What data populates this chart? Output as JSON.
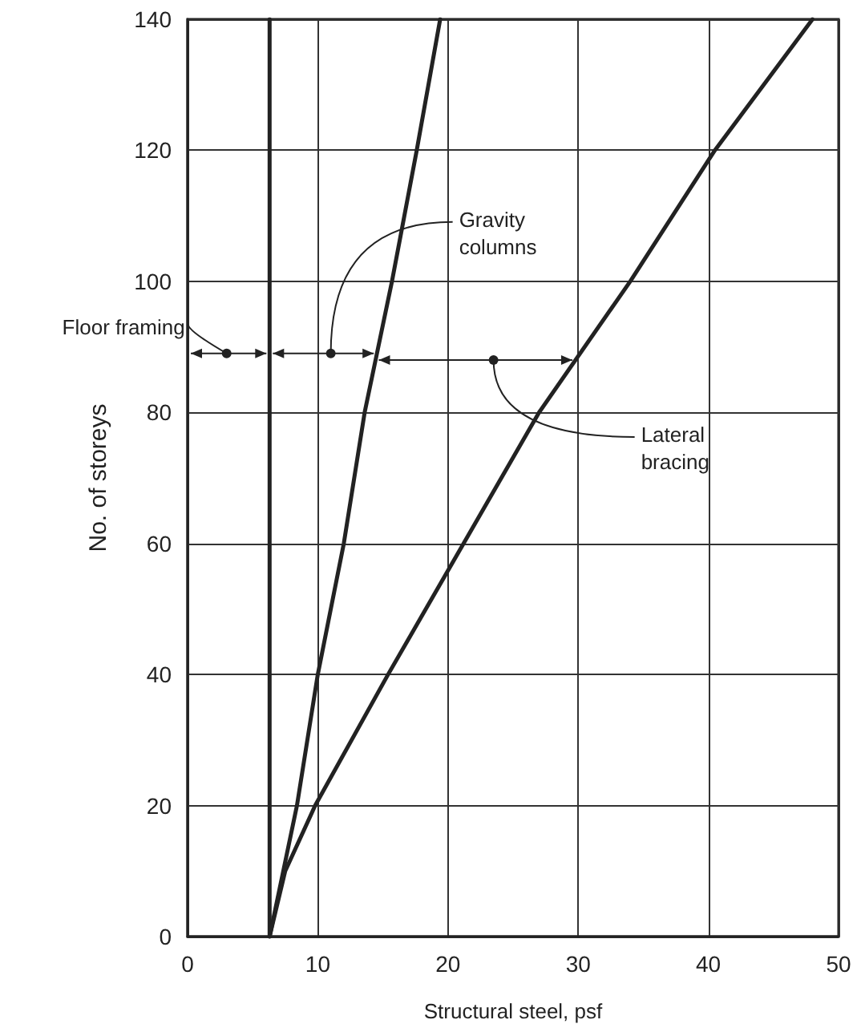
{
  "chart_data": {
    "type": "line",
    "xlabel": "Structural steel, psf",
    "ylabel": "No. of storeys",
    "series": [
      {
        "color": "#222222",
        "x": [
          6.3,
          6.3
        ],
        "values": [
          0,
          140
        ]
      },
      {
        "color": "#222222",
        "x": [
          6.3,
          8.4,
          10,
          12,
          13.6,
          15.7,
          17.6,
          19.4
        ],
        "values": [
          0,
          20,
          40,
          60,
          80,
          100,
          120,
          140
        ]
      },
      {
        "color": "#222222",
        "x": [
          6.3,
          7.5,
          9.8,
          15.4,
          21.2,
          27,
          34,
          40.5,
          48
        ],
        "values": [
          0,
          10,
          20,
          40,
          60,
          80,
          100,
          120,
          140
        ]
      }
    ],
    "annotations": [
      {
        "text": "Floor framing",
        "x": 3,
        "y": 89
      },
      {
        "text": "Gravity columns",
        "x": 11,
        "y": 89
      },
      {
        "text": "Lateral bracing",
        "x": 23.5,
        "y": 88
      }
    ],
    "xlim": [
      0,
      50
    ],
    "xticks": [
      0,
      10,
      20,
      30,
      40,
      50
    ],
    "ylim": [
      0,
      140
    ],
    "yticks": [
      0,
      20,
      40,
      60,
      80,
      100,
      120,
      140
    ],
    "grid": true,
    "marker": "none",
    "line_style": "solid"
  }
}
